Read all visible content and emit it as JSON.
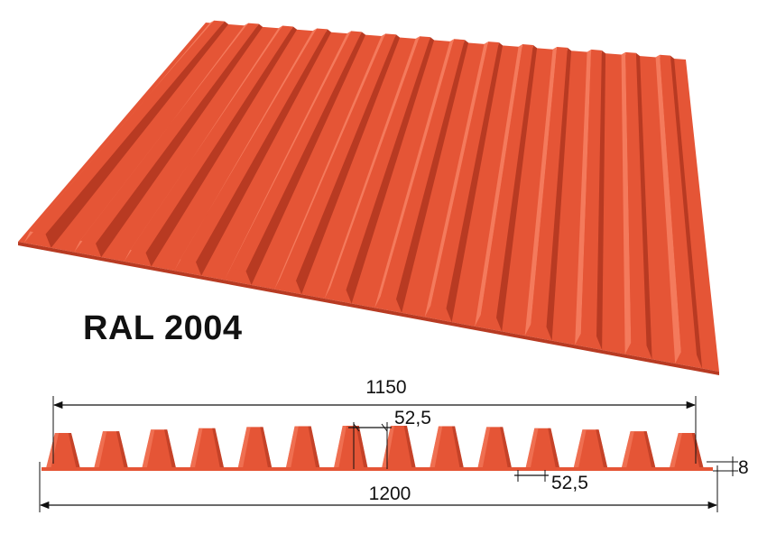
{
  "color_name": "RAL 2004",
  "colors": {
    "sheet_face": "#E55536",
    "sheet_light": "#F47A5C",
    "sheet_dark": "#B83A22",
    "dimension_line": "#111111"
  },
  "dimensions": {
    "cover_width": "1150",
    "total_width": "1200",
    "top_flange": "52,5",
    "bottom_flange": "52,5",
    "height": "8"
  },
  "sheet": {
    "ribs": 14
  }
}
